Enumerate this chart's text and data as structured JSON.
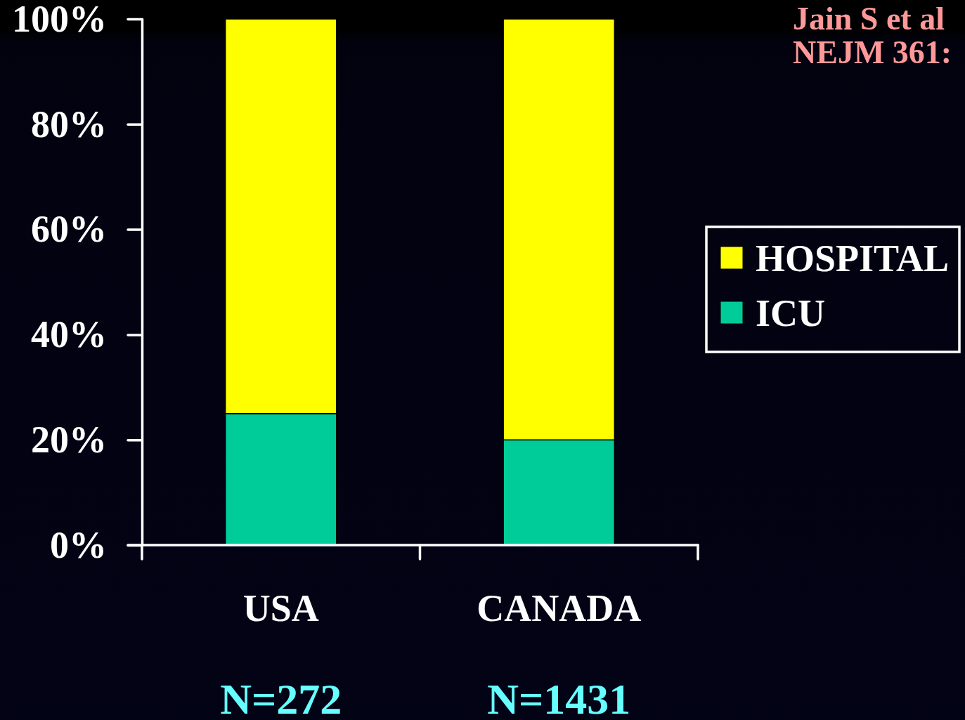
{
  "chart_data": {
    "type": "bar",
    "stacked": true,
    "categories": [
      "USA",
      "CANADA"
    ],
    "series": [
      {
        "name": "ICU",
        "color": "#00cc99",
        "values": [
          25,
          20
        ]
      },
      {
        "name": "HOSPITAL",
        "color": "#ffff00",
        "values": [
          75,
          80
        ]
      }
    ],
    "ylim": [
      0,
      100
    ],
    "yticks": [
      {
        "value": 0,
        "label": "0%"
      },
      {
        "value": 20,
        "label": "20%"
      },
      {
        "value": 40,
        "label": "40%"
      },
      {
        "value": 60,
        "label": "60%"
      },
      {
        "value": 80,
        "label": "80%"
      },
      {
        "value": 100,
        "label": "100%"
      }
    ],
    "legend": "right",
    "annotations": [
      "Jain S et al",
      "NEJM 361:",
      "N=272",
      "N=1431"
    ]
  }
}
